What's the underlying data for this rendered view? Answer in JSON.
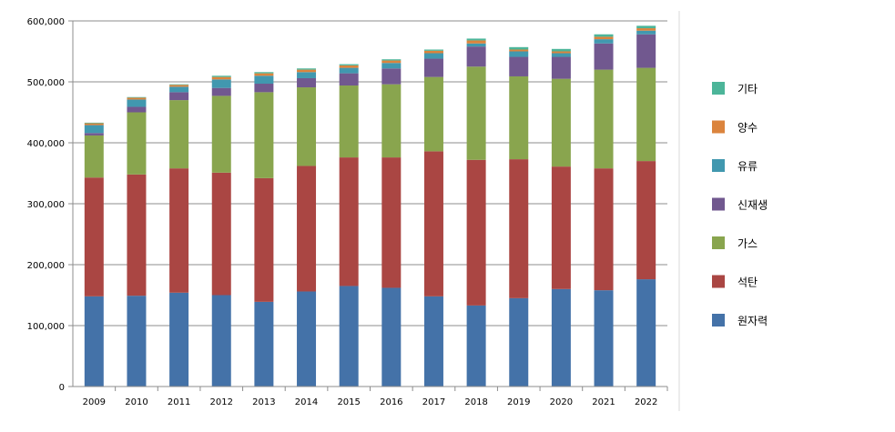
{
  "chart_data": {
    "type": "bar",
    "stacked": true,
    "title": "",
    "xlabel": "",
    "ylabel": "",
    "ylim": [
      0,
      600000
    ],
    "yticks": [
      0,
      100000,
      200000,
      300000,
      400000,
      500000,
      600000
    ],
    "ytick_labels": [
      "0",
      "100,000",
      "200,000",
      "300,000",
      "400,000",
      "500,000",
      "600,000"
    ],
    "grid": "horizontal",
    "legend_position": "right",
    "legend_order": [
      "기타",
      "양수",
      "유류",
      "신재생",
      "가스",
      "석탄",
      "원자력"
    ],
    "categories": [
      "2009",
      "2010",
      "2011",
      "2012",
      "2013",
      "2014",
      "2015",
      "2016",
      "2017",
      "2018",
      "2019",
      "2020",
      "2021",
      "2022"
    ],
    "series": [
      {
        "name": "원자력",
        "color": "#4472a8",
        "values": [
          148000,
          149000,
          154000,
          150000,
          139000,
          156000,
          165000,
          162000,
          148000,
          133000,
          145000,
          160000,
          158000,
          176000
        ]
      },
      {
        "name": "석탄",
        "color": "#aa4643",
        "values": [
          195000,
          199000,
          204000,
          201000,
          203000,
          206000,
          211000,
          214000,
          238000,
          239000,
          228000,
          201000,
          200000,
          194000
        ]
      },
      {
        "name": "가스",
        "color": "#89a54e",
        "values": [
          69000,
          102000,
          112000,
          126000,
          141000,
          129000,
          118000,
          120000,
          122000,
          153000,
          136000,
          144000,
          162000,
          153000
        ]
      },
      {
        "name": "신재생",
        "color": "#71588f",
        "values": [
          4000,
          9000,
          13000,
          13000,
          14000,
          15000,
          20000,
          26000,
          30000,
          33000,
          32000,
          36000,
          43000,
          55000
        ]
      },
      {
        "name": "유류",
        "color": "#4198af",
        "values": [
          13000,
          12000,
          9000,
          14000,
          13000,
          10000,
          9000,
          9000,
          9000,
          5000,
          9000,
          6000,
          7000,
          6000
        ]
      },
      {
        "name": "양수",
        "color": "#db843d",
        "values": [
          3000,
          3000,
          3000,
          4000,
          4000,
          4000,
          4000,
          4000,
          4000,
          5000,
          3000,
          3000,
          4000,
          4000
        ]
      },
      {
        "name": "기타",
        "color": "#4cb599",
        "values": [
          1000,
          1000,
          1000,
          2000,
          2000,
          2000,
          2000,
          2000,
          2000,
          3000,
          4000,
          4000,
          4000,
          4000
        ]
      }
    ]
  }
}
